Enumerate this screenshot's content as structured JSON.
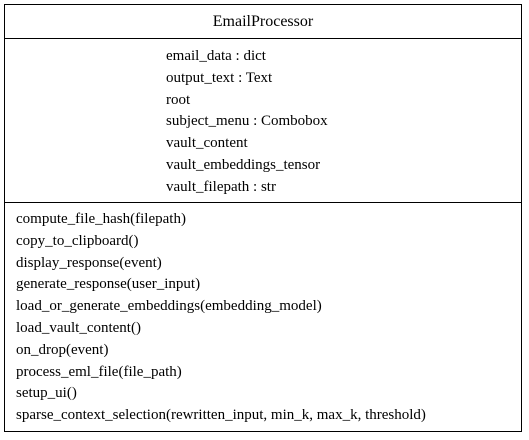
{
  "class_name": "EmailProcessor",
  "attributes": [
    "email_data : dict",
    "output_text : Text",
    "root",
    "subject_menu : Combobox",
    "vault_content",
    "vault_embeddings_tensor",
    "vault_filepath : str"
  ],
  "methods": [
    "compute_file_hash(filepath)",
    "copy_to_clipboard()",
    "display_response(event)",
    "generate_response(user_input)",
    "load_or_generate_embeddings(embedding_model)",
    "load_vault_content()",
    "on_drop(event)",
    "process_eml_file(file_path)",
    "setup_ui()",
    "sparse_context_selection(rewritten_input, min_k, max_k, threshold)"
  ]
}
